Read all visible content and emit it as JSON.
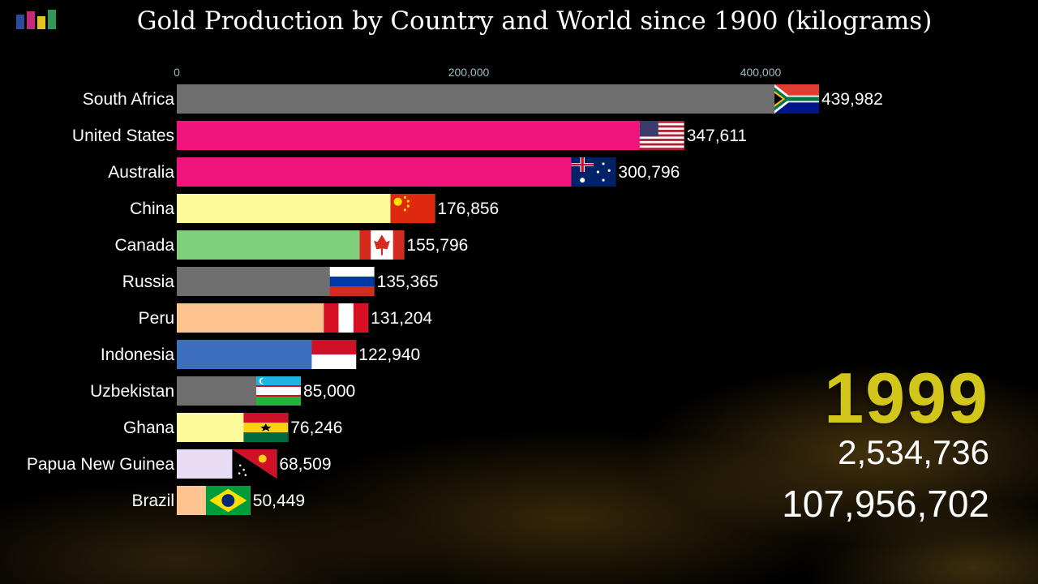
{
  "title": "Gold Production by Country  and  World since 1900 (kilograms)",
  "year": "1999",
  "year_total": "2,534,736",
  "cumulative_total": "107,956,702",
  "colors": {
    "background": "#000000",
    "year": "#d2c61a",
    "axis_tick": "#9bbcc4",
    "logo": [
      "#2b4c9b",
      "#c8287a",
      "#e2c324",
      "#2e9a5a"
    ]
  },
  "chart_data": {
    "type": "bar",
    "orientation": "horizontal",
    "xlim": [
      0,
      440000
    ],
    "xticks": [
      0,
      200000,
      400000
    ],
    "xtick_labels": [
      "0",
      "200,000",
      "400,000"
    ],
    "grid": false,
    "categories": [
      "South Africa",
      "United States",
      "Australia",
      "China",
      "Canada",
      "Russia",
      "Peru",
      "Indonesia",
      "Uzbekistan",
      "Ghana",
      "Papua New Guinea",
      "Brazil"
    ],
    "values": [
      439982,
      347611,
      300796,
      176856,
      155796,
      135365,
      131204,
      122940,
      85000,
      76246,
      68509,
      50449
    ],
    "value_labels": [
      "439,982",
      "347,611",
      "300,796",
      "176,856",
      "155,796",
      "135,365",
      "131,204",
      "122,940",
      "85,000",
      "76,246",
      "68,509",
      "50,449"
    ],
    "bar_colors": [
      "#6f6f6f",
      "#f0147c",
      "#f0147c",
      "#fdfa9c",
      "#7fcf7d",
      "#6f6f6f",
      "#fdc48f",
      "#3d6dbd",
      "#6f6f6f",
      "#fdfa9c",
      "#e8dcf4",
      "#fdc48f"
    ],
    "flags": [
      "south-africa-flag",
      "united-states-flag",
      "australia-flag",
      "china-flag",
      "canada-flag",
      "russia-flag",
      "peru-flag",
      "indonesia-flag",
      "uzbekistan-flag",
      "ghana-flag",
      "papua-new-guinea-flag",
      "brazil-flag"
    ]
  }
}
